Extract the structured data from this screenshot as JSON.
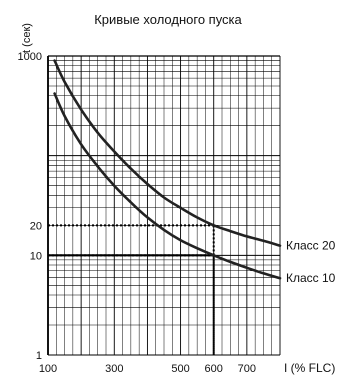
{
  "chart_data": {
    "type": "line",
    "title": "Кривые холодного пуска",
    "ylabel": "t (сек)",
    "xlabel": "I (% FLC)",
    "ylog": true,
    "ylim": [
      1,
      1000
    ],
    "xlim": [
      100,
      800
    ],
    "grid": true,
    "x_ticks": [
      {
        "value": 100,
        "label": "100"
      },
      {
        "value": 300,
        "label": "300"
      },
      {
        "value": 500,
        "label": "500"
      },
      {
        "value": 600,
        "label": "600"
      },
      {
        "value": 700,
        "label": "700"
      }
    ],
    "y_ticks": [
      {
        "value": 1,
        "label": "1"
      },
      {
        "value": 10,
        "label": "10"
      },
      {
        "value": 20,
        "label": "20"
      },
      {
        "value": 1000,
        "label": "1000"
      }
    ],
    "series": [
      {
        "name": "Класс 20",
        "x": [
          120,
          150,
          200,
          250,
          300,
          350,
          400,
          450,
          500,
          550,
          600,
          650,
          700,
          750,
          800
        ],
        "y": [
          900,
          550,
          290,
          170,
          110,
          74,
          52,
          38,
          30,
          24,
          20,
          17.5,
          15.5,
          14,
          12.5
        ]
      },
      {
        "name": "Класс 10",
        "x": [
          120,
          150,
          200,
          250,
          300,
          350,
          400,
          450,
          500,
          550,
          600,
          650,
          700,
          750,
          800
        ],
        "y": [
          420,
          250,
          130,
          78,
          50,
          34,
          24,
          18,
          14.2,
          11.8,
          10,
          8.6,
          7.5,
          6.6,
          5.9
        ]
      }
    ],
    "annotations": [
      {
        "x": 600,
        "y": 20,
        "style": "dotted"
      },
      {
        "x": 600,
        "y": 10,
        "style": "dotted"
      }
    ],
    "reference_lines": [
      {
        "y": 10,
        "style": "solid-bold",
        "x_from": 100,
        "x_to": 600
      }
    ]
  }
}
